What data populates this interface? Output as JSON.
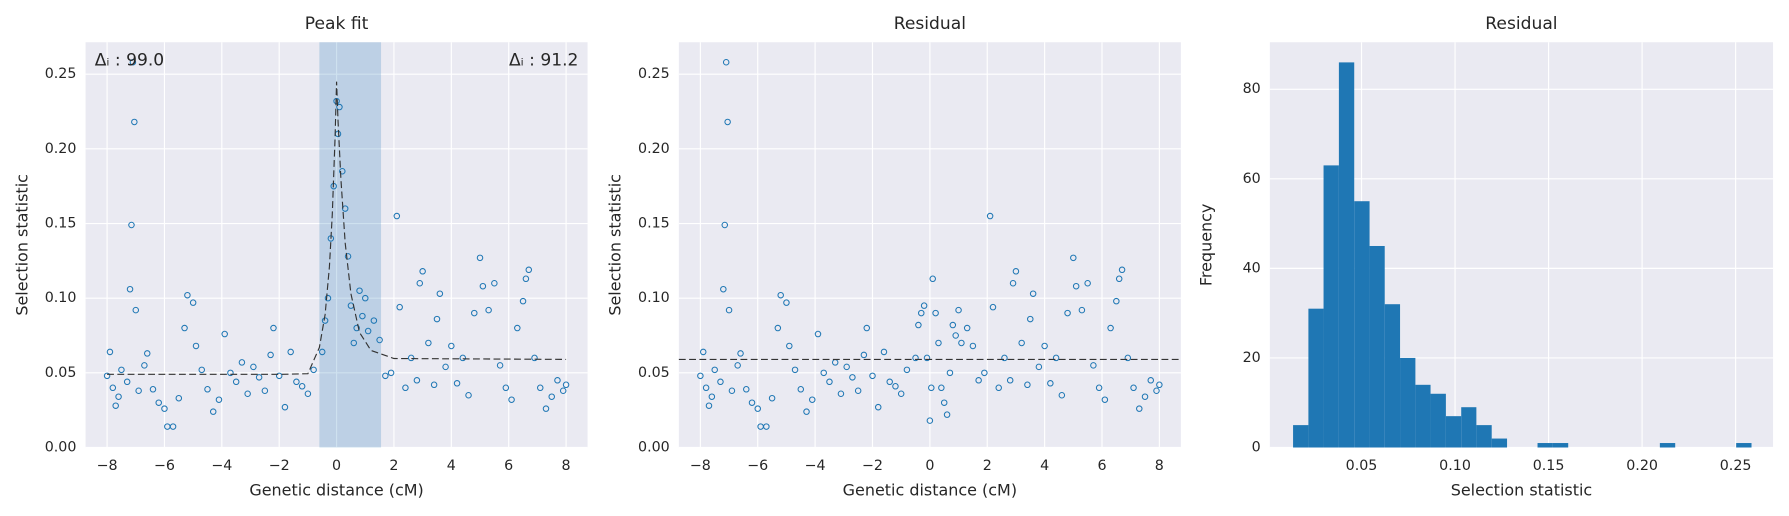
{
  "chart_data": [
    {
      "type": "scatter",
      "title": "Peak fit",
      "x_label": "Genetic distance (cM)",
      "y_label": "Selection statistic",
      "color": "#1f77b4",
      "grid": true,
      "xlim": [
        -8.75,
        8.75
      ],
      "ylim": [
        0,
        0.2714
      ],
      "xticks": [
        {
          "value": -8,
          "label": "−8"
        },
        {
          "value": -6,
          "label": "−6"
        },
        {
          "value": -4,
          "label": "−4"
        },
        {
          "value": -2,
          "label": "−2"
        },
        0,
        2,
        4,
        6,
        8
      ],
      "yticks": [
        {
          "value": 0,
          "label": "0.00"
        },
        0.05,
        {
          "value": 0.1,
          "label": "0.10"
        },
        0.15,
        {
          "value": 0.2,
          "label": "0.20"
        },
        0.25
      ],
      "span": [
        -0.6,
        1.55
      ],
      "annotations": [
        "Δᵢ : 99.0",
        "Δᵢ : 91.2"
      ],
      "fit": {
        "x": [
          -8,
          -2,
          -1,
          -0.6,
          -0.4,
          -0.25,
          -0.15,
          -0.05,
          0,
          0.05,
          0.15,
          0.3,
          0.5,
          0.8,
          1.2,
          2,
          8
        ],
        "values": [
          0.049,
          0.049,
          0.0494,
          0.067,
          0.089,
          0.121,
          0.156,
          0.209,
          0.245,
          0.219,
          0.18,
          0.137,
          0.103,
          0.077,
          0.065,
          0.0596,
          0.059
        ]
      },
      "x": [
        -8.0,
        -7.9,
        -7.8,
        -7.7,
        -7.6,
        -7.5,
        -7.3,
        -7.2,
        -7.15,
        -7.1,
        -7.05,
        -7.0,
        -6.9,
        -6.7,
        -6.6,
        -6.4,
        -6.2,
        -6.0,
        -5.9,
        -5.7,
        -5.5,
        -5.3,
        -5.2,
        -5.0,
        -4.9,
        -4.7,
        -4.5,
        -4.3,
        -4.1,
        -3.9,
        -3.7,
        -3.5,
        -3.3,
        -3.1,
        -2.9,
        -2.7,
        -2.5,
        -2.3,
        -2.2,
        -2.0,
        -1.8,
        -1.6,
        -1.4,
        -1.2,
        -1.0,
        -0.8,
        -0.5,
        -0.4,
        -0.3,
        -0.2,
        -0.1,
        0.0,
        0.05,
        0.1,
        0.2,
        0.3,
        0.4,
        0.5,
        0.6,
        0.7,
        0.8,
        0.9,
        1.0,
        1.1,
        1.3,
        1.5,
        1.7,
        1.9,
        2.1,
        2.2,
        2.4,
        2.6,
        2.8,
        2.9,
        3.0,
        3.2,
        3.4,
        3.5,
        3.6,
        3.8,
        4.0,
        4.2,
        4.4,
        4.6,
        4.8,
        5.0,
        5.1,
        5.3,
        5.5,
        5.7,
        5.9,
        6.1,
        6.3,
        6.5,
        6.6,
        6.7,
        6.9,
        7.1,
        7.3,
        7.5,
        7.7,
        7.9,
        8.0
      ],
      "values": [
        0.048,
        0.064,
        0.04,
        0.028,
        0.034,
        0.052,
        0.044,
        0.106,
        0.149,
        0.258,
        0.218,
        0.092,
        0.038,
        0.055,
        0.063,
        0.039,
        0.03,
        0.026,
        0.014,
        0.014,
        0.033,
        0.08,
        0.102,
        0.097,
        0.068,
        0.052,
        0.039,
        0.024,
        0.032,
        0.076,
        0.05,
        0.044,
        0.057,
        0.036,
        0.054,
        0.047,
        0.038,
        0.062,
        0.08,
        0.048,
        0.027,
        0.064,
        0.044,
        0.041,
        0.036,
        0.052,
        0.064,
        0.085,
        0.1,
        0.14,
        0.175,
        0.232,
        0.21,
        0.228,
        0.185,
        0.16,
        0.128,
        0.095,
        0.07,
        0.08,
        0.105,
        0.088,
        0.1,
        0.078,
        0.085,
        0.072,
        0.048,
        0.05,
        0.155,
        0.094,
        0.04,
        0.06,
        0.045,
        0.11,
        0.118,
        0.07,
        0.042,
        0.086,
        0.103,
        0.054,
        0.068,
        0.043,
        0.06,
        0.035,
        0.09,
        0.127,
        0.108,
        0.092,
        0.11,
        0.055,
        0.04,
        0.032,
        0.08,
        0.098,
        0.113,
        0.119,
        0.06,
        0.04,
        0.026,
        0.034,
        0.045,
        0.038,
        0.042
      ]
    },
    {
      "type": "scatter",
      "title": "Residual",
      "x_label": "Genetic distance (cM)",
      "y_label": "Selection statistic",
      "color": "#1f77b4",
      "grid": true,
      "xlim": [
        -8.75,
        8.75
      ],
      "ylim": [
        0,
        0.2714
      ],
      "xticks": [
        {
          "value": -8,
          "label": "−8"
        },
        {
          "value": -6,
          "label": "−6"
        },
        {
          "value": -4,
          "label": "−4"
        },
        {
          "value": -2,
          "label": "−2"
        },
        0,
        2,
        4,
        6,
        8
      ],
      "yticks": [
        {
          "value": 0,
          "label": "0.00"
        },
        0.05,
        {
          "value": 0.1,
          "label": "0.10"
        },
        0.15,
        {
          "value": 0.2,
          "label": "0.20"
        },
        0.25
      ],
      "hline": 0.059,
      "x": [
        -8.0,
        -7.9,
        -7.8,
        -7.7,
        -7.6,
        -7.5,
        -7.3,
        -7.2,
        -7.15,
        -7.1,
        -7.05,
        -7.0,
        -6.9,
        -6.7,
        -6.6,
        -6.4,
        -6.2,
        -6.0,
        -5.9,
        -5.7,
        -5.5,
        -5.3,
        -5.2,
        -5.0,
        -4.9,
        -4.7,
        -4.5,
        -4.3,
        -4.1,
        -3.9,
        -3.7,
        -3.5,
        -3.3,
        -3.1,
        -2.9,
        -2.7,
        -2.5,
        -2.3,
        -2.2,
        -2.0,
        -1.8,
        -1.6,
        -1.4,
        -1.2,
        -1.0,
        -0.8,
        -0.5,
        -0.4,
        -0.3,
        -0.2,
        -0.1,
        0.0,
        0.05,
        0.1,
        0.2,
        0.3,
        0.4,
        0.5,
        0.6,
        0.7,
        0.8,
        0.9,
        1.0,
        1.1,
        1.3,
        1.5,
        1.7,
        1.9,
        2.1,
        2.2,
        2.4,
        2.6,
        2.8,
        2.9,
        3.0,
        3.2,
        3.4,
        3.5,
        3.6,
        3.8,
        4.0,
        4.2,
        4.4,
        4.6,
        4.8,
        5.0,
        5.1,
        5.3,
        5.5,
        5.7,
        5.9,
        6.1,
        6.3,
        6.5,
        6.6,
        6.7,
        6.9,
        7.1,
        7.3,
        7.5,
        7.7,
        7.9,
        8.0
      ],
      "values": [
        0.048,
        0.064,
        0.04,
        0.028,
        0.034,
        0.052,
        0.044,
        0.106,
        0.149,
        0.258,
        0.218,
        0.092,
        0.038,
        0.055,
        0.063,
        0.039,
        0.03,
        0.026,
        0.014,
        0.014,
        0.033,
        0.08,
        0.102,
        0.097,
        0.068,
        0.052,
        0.039,
        0.024,
        0.032,
        0.076,
        0.05,
        0.044,
        0.057,
        0.036,
        0.054,
        0.047,
        0.038,
        0.062,
        0.08,
        0.048,
        0.027,
        0.064,
        0.044,
        0.041,
        0.036,
        0.052,
        0.06,
        0.082,
        0.09,
        0.095,
        0.06,
        0.018,
        0.04,
        0.113,
        0.09,
        0.07,
        0.04,
        0.03,
        0.022,
        0.05,
        0.082,
        0.075,
        0.092,
        0.07,
        0.08,
        0.068,
        0.045,
        0.05,
        0.155,
        0.094,
        0.04,
        0.06,
        0.045,
        0.11,
        0.118,
        0.07,
        0.042,
        0.086,
        0.103,
        0.054,
        0.068,
        0.043,
        0.06,
        0.035,
        0.09,
        0.127,
        0.108,
        0.092,
        0.11,
        0.055,
        0.04,
        0.032,
        0.08,
        0.098,
        0.113,
        0.119,
        0.06,
        0.04,
        0.026,
        0.034,
        0.045,
        0.038,
        0.042
      ]
    },
    {
      "type": "histogram",
      "title": "Residual",
      "x_label": "Selection statistic",
      "y_label": "Frequency",
      "color": "#1f77b4",
      "grid": true,
      "xlim": [
        0.001,
        0.27
      ],
      "ylim": [
        0,
        90.5
      ],
      "xticks": [
        0.05,
        {
          "value": 0.1,
          "label": "0.10"
        },
        0.15,
        {
          "value": 0.2,
          "label": "0.20"
        },
        0.25
      ],
      "yticks": [
        0,
        20,
        40,
        60,
        80
      ],
      "bins": [
        0.0134,
        0.0216,
        0.0297,
        0.0379,
        0.0461,
        0.0543,
        0.0624,
        0.0706,
        0.0788,
        0.0869,
        0.0951,
        0.1033,
        0.1114,
        0.1196,
        0.1278,
        0.136,
        0.1441,
        0.1523,
        0.1605,
        0.1686,
        0.1768,
        0.185,
        0.1931,
        0.2013,
        0.2095,
        0.2177,
        0.2258,
        0.234,
        0.2422,
        0.2503,
        0.2585
      ],
      "values": [
        5,
        31,
        63,
        86,
        55,
        45,
        32,
        20,
        14,
        12,
        7,
        9,
        5,
        2,
        0,
        0,
        1,
        1,
        0,
        0,
        0,
        0,
        0,
        0,
        1,
        0,
        0,
        0,
        0,
        1
      ]
    }
  ]
}
